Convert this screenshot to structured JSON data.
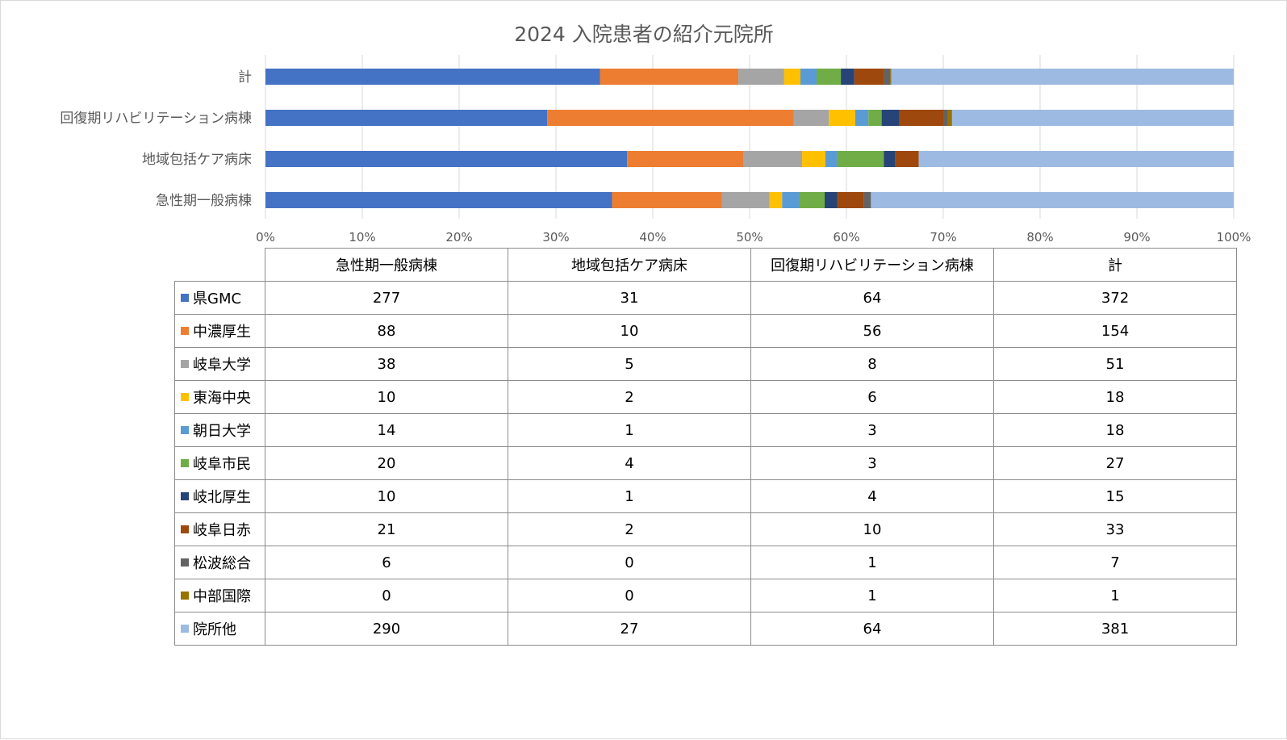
{
  "chart_data": {
    "type": "bar",
    "orientation": "horizontal",
    "stacking": "percent",
    "title": "2024 入院患者の紹介元院所",
    "categories": [
      "急性期一般病棟",
      "地域包括ケア病床",
      "回復期リハビリテーション病棟",
      "計"
    ],
    "xlim": [
      0,
      100
    ],
    "x_ticks": [
      "0%",
      "10%",
      "20%",
      "30%",
      "40%",
      "50%",
      "60%",
      "70%",
      "80%",
      "90%",
      "100%"
    ],
    "grid": true,
    "legend": "data-table-below",
    "series": [
      {
        "name": "県GMC",
        "color": "#4472c4",
        "values": [
          277,
          31,
          64,
          372
        ]
      },
      {
        "name": "中濃厚生",
        "color": "#ed7d31",
        "values": [
          88,
          10,
          56,
          154
        ]
      },
      {
        "name": "岐阜大学",
        "color": "#a5a5a5",
        "values": [
          38,
          5,
          8,
          51
        ]
      },
      {
        "name": "東海中央",
        "color": "#ffc000",
        "values": [
          10,
          2,
          6,
          18
        ]
      },
      {
        "name": "朝日大学",
        "color": "#5b9bd5",
        "values": [
          14,
          1,
          3,
          18
        ]
      },
      {
        "name": "岐阜市民",
        "color": "#70ad47",
        "values": [
          20,
          4,
          3,
          27
        ]
      },
      {
        "name": "岐北厚生",
        "color": "#264478",
        "values": [
          10,
          1,
          4,
          15
        ]
      },
      {
        "name": "岐阜日赤",
        "color": "#9e480e",
        "values": [
          21,
          2,
          10,
          33
        ]
      },
      {
        "name": "松波総合",
        "color": "#636363",
        "values": [
          6,
          0,
          1,
          7
        ]
      },
      {
        "name": "中部国際",
        "color": "#997300",
        "values": [
          0,
          0,
          1,
          1
        ]
      },
      {
        "name": "院所他",
        "color": "#9dbbe2",
        "values": [
          290,
          27,
          64,
          381
        ]
      }
    ]
  }
}
